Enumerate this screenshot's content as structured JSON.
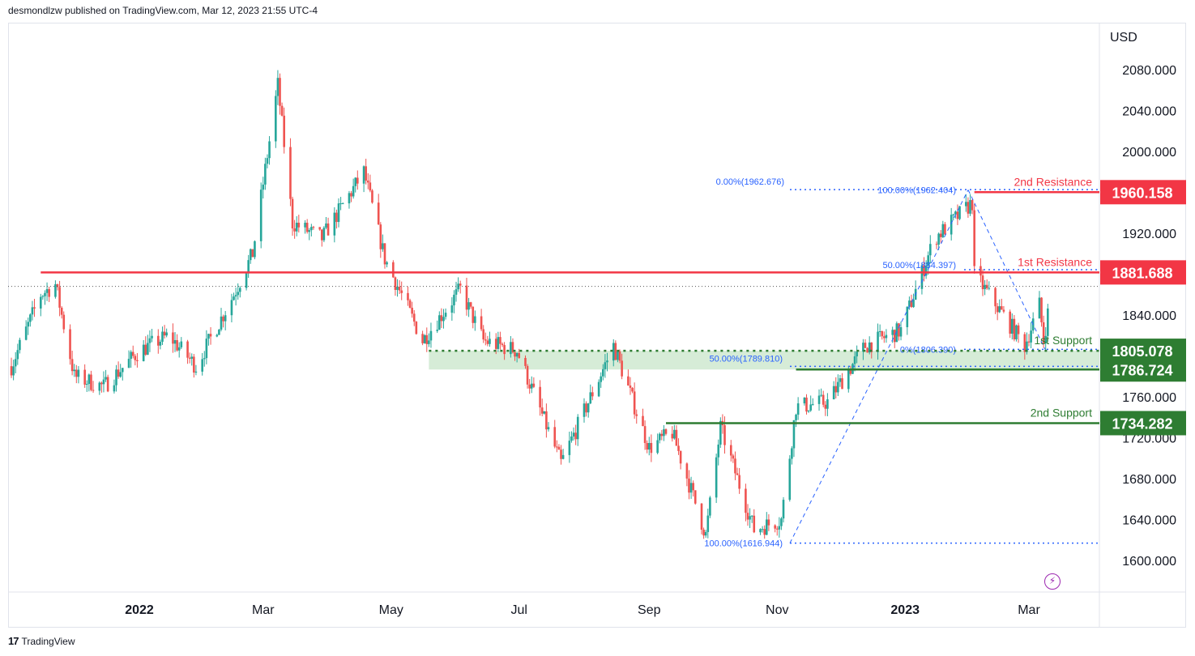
{
  "header": {
    "published_text": "desmondlzw published on TradingView.com, Mar 12, 2023 21:55 UTC-4"
  },
  "footer": {
    "brand": "TradingView",
    "logo_glyph": "17"
  },
  "colors": {
    "up": "#26a69a",
    "down": "#ef5350",
    "resistance": "#f23645",
    "support": "#2e7d32",
    "fib": "#2962ff",
    "zone": "#c8e6c9"
  },
  "chart_data": {
    "type": "candlestick",
    "currency": "USD",
    "y_ticks": [
      "2080.000",
      "2040.000",
      "2000.000",
      "1960.000",
      "1920.000",
      "1880.000",
      "1840.000",
      "1800.000",
      "1760.000",
      "1720.000",
      "1680.000",
      "1640.000",
      "1600.000"
    ],
    "ylim": [
      1585,
      2100
    ],
    "x_ticks": [
      "2022",
      "Mar",
      "May",
      "Jul",
      "Sep",
      "Nov",
      "2023",
      "Mar"
    ],
    "x_range": [
      "2021-11-01",
      "2023-03-12"
    ],
    "grid": false,
    "levels": [
      {
        "name": "2nd Resistance",
        "value": 1960.158,
        "label": "1960.158",
        "kind": "resistance"
      },
      {
        "name": "1st Resistance",
        "value": 1881.688,
        "label": "1881.688",
        "kind": "resistance"
      },
      {
        "name": "1st Support",
        "value": 1805.078,
        "label": "1805.078",
        "kind": "support"
      },
      {
        "name": "",
        "value": 1786.724,
        "label": "1786.724",
        "kind": "support"
      },
      {
        "name": "2nd Support",
        "value": 1734.282,
        "label": "1734.282",
        "kind": "support"
      }
    ],
    "fib_labels": [
      {
        "text": "0.00%(1962.676)",
        "value": 1962.676
      },
      {
        "text": "100.00%(1962.404)",
        "value": 1962.404
      },
      {
        "text": "50.00%(1884.397)",
        "value": 1884.397
      },
      {
        "text": "50.00%(1789.810)",
        "value": 1789.81
      },
      {
        "text": "0%(1806.390)",
        "value": 1806.39
      },
      {
        "text": "100.00%(1616.944)",
        "value": 1616.944
      }
    ],
    "price_path": [
      [
        "2021-11-01",
        1790
      ],
      [
        "2021-11-15",
        1860
      ],
      [
        "2021-11-22",
        1870
      ],
      [
        "2021-12-01",
        1780
      ],
      [
        "2021-12-15",
        1770
      ],
      [
        "2022-01-01",
        1805
      ],
      [
        "2022-01-15",
        1820
      ],
      [
        "2022-01-28",
        1790
      ],
      [
        "2022-02-15",
        1860
      ],
      [
        "2022-02-24",
        1900
      ],
      [
        "2022-03-08",
        2065
      ],
      [
        "2022-03-15",
        1930
      ],
      [
        "2022-03-29",
        1915
      ],
      [
        "2022-04-18",
        1980
      ],
      [
        "2022-04-28",
        1895
      ],
      [
        "2022-05-16",
        1815
      ],
      [
        "2022-06-03",
        1865
      ],
      [
        "2022-06-14",
        1815
      ],
      [
        "2022-06-30",
        1805
      ],
      [
        "2022-07-21",
        1695
      ],
      [
        "2022-08-15",
        1810
      ],
      [
        "2022-09-01",
        1710
      ],
      [
        "2022-09-12",
        1725
      ],
      [
        "2022-09-28",
        1625
      ],
      [
        "2022-10-05",
        1730
      ],
      [
        "2022-10-21",
        1630
      ],
      [
        "2022-11-03",
        1640
      ],
      [
        "2022-11-10",
        1750
      ],
      [
        "2022-11-25",
        1755
      ],
      [
        "2022-12-13",
        1810
      ],
      [
        "2022-12-30",
        1825
      ],
      [
        "2023-01-15",
        1915
      ],
      [
        "2023-02-02",
        1950
      ],
      [
        "2023-02-03",
        1880
      ],
      [
        "2023-02-27",
        1810
      ],
      [
        "2023-03-06",
        1850
      ],
      [
        "2023-03-08",
        1815
      ],
      [
        "2023-03-12",
        1868
      ]
    ]
  }
}
